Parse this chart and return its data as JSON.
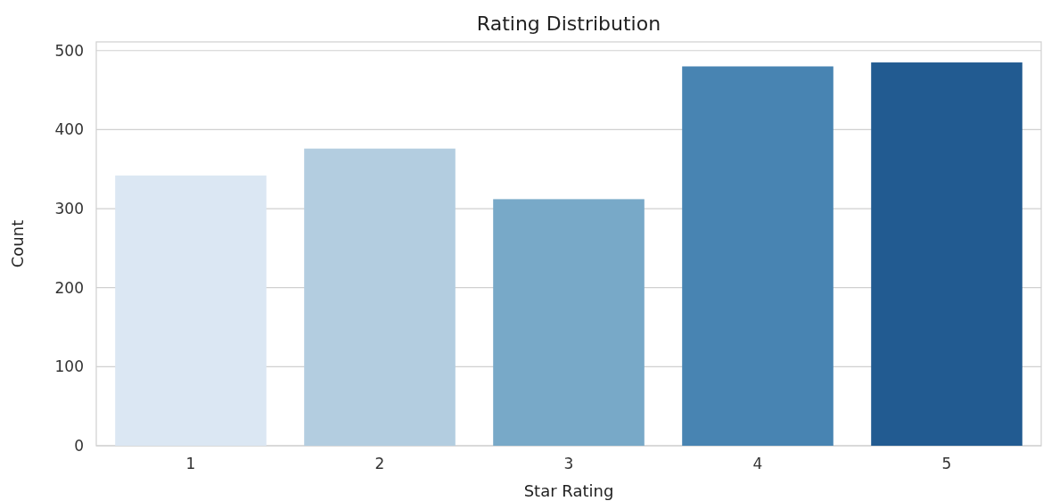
{
  "chart_data": {
    "type": "bar",
    "title": "Rating Distribution",
    "xlabel": "Star Rating",
    "ylabel": "Count",
    "categories": [
      "1",
      "2",
      "3",
      "4",
      "5"
    ],
    "values": [
      342,
      376,
      312,
      480,
      485
    ],
    "colors": [
      "#dbe7f3",
      "#b3cde0",
      "#78a9c8",
      "#4884b2",
      "#225b91"
    ],
    "ylim": [
      0,
      511
    ],
    "yticks": [
      0,
      100,
      200,
      300,
      400,
      500
    ],
    "grid": "y"
  }
}
